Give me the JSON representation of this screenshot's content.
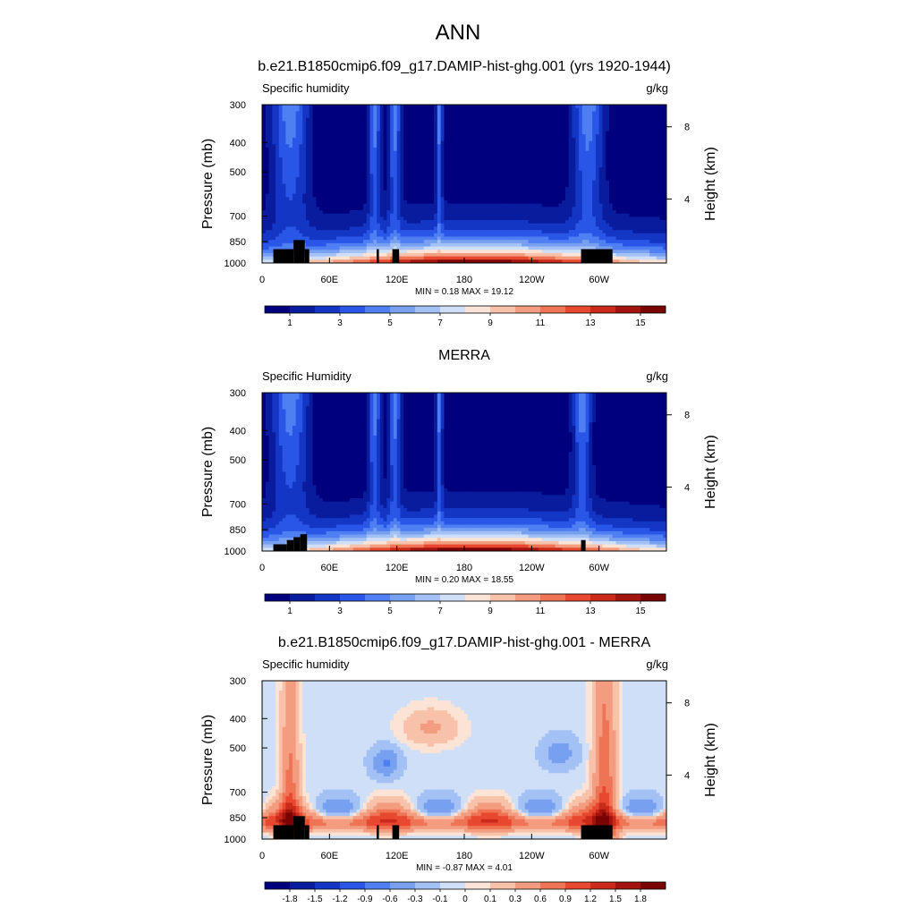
{
  "figure": {
    "title": "ANN"
  },
  "colors": {
    "abs_scale": [
      "#00007f",
      "#0a1c9e",
      "#1436c4",
      "#2a56e8",
      "#4f7ff2",
      "#78a0f0",
      "#a3c1f4",
      "#cfdff7",
      "#fbe4d5",
      "#f7c2a9",
      "#f39c80",
      "#ee7455",
      "#e8482f",
      "#c92a1a",
      "#a3140e",
      "#7a0403"
    ],
    "diff_scale": [
      "#00007f",
      "#0a1c9e",
      "#1436c4",
      "#2a56e8",
      "#4f7ff2",
      "#78a0f0",
      "#a3c1f4",
      "#cfdff7",
      "#fbe4d5",
      "#f7c2a9",
      "#f39c80",
      "#ee7455",
      "#e8482f",
      "#c92a1a",
      "#a3140e",
      "#7a0403"
    ],
    "topo": "#000000"
  },
  "chart_data": [
    {
      "type": "heatmap",
      "title": "b.e21.B1850cmip6.f09_g17.DAMIP-hist-ghg.001 (yrs 1920-1944)",
      "left_label": "Specific humidity",
      "right_label": "g/kg",
      "ylabel": "Pressure (mb)",
      "ylabel_right": "Height (km)",
      "x_ticks": [
        "0",
        "60E",
        "120E",
        "180",
        "120W",
        "60W"
      ],
      "x_tick_values": [
        0,
        60,
        120,
        180,
        240,
        300
      ],
      "xlim": [
        0,
        360
      ],
      "y_ticks": [
        "300",
        "400",
        "500",
        "700",
        "850",
        "1000"
      ],
      "y_tick_values": [
        300,
        400,
        500,
        700,
        850,
        1000
      ],
      "ylim": [
        1000,
        300
      ],
      "y_scale": "log",
      "height_ticks": [
        "8",
        "4"
      ],
      "height_tick_values": [
        8,
        4
      ],
      "stats": "MIN =   0.18  MAX =  19.12",
      "colorbar_labels": [
        "1",
        "3",
        "5",
        "7",
        "9",
        "11",
        "13",
        "15"
      ],
      "levels": [
        0,
        1,
        2,
        3,
        4,
        5,
        6,
        7,
        8,
        9,
        10,
        11,
        12,
        13,
        14,
        15
      ],
      "ridges": [
        [
          25,
          12
        ],
        [
          100,
          4
        ],
        [
          118,
          4
        ],
        [
          158,
          2
        ],
        [
          290,
          10
        ]
      ],
      "topography": [
        [
          10,
          28,
          900,
          1000
        ],
        [
          28,
          38,
          840,
          1000
        ],
        [
          38,
          42,
          900,
          1000
        ],
        [
          102,
          104,
          900,
          1000
        ],
        [
          116,
          122,
          900,
          1000
        ],
        [
          284,
          312,
          900,
          1000
        ]
      ]
    },
    {
      "type": "heatmap",
      "title": "MERRA",
      "left_label": "Specific Humidity",
      "right_label": "g/kg",
      "ylabel": "Pressure (mb)",
      "ylabel_right": "Height (km)",
      "x_ticks": [
        "0",
        "60E",
        "120E",
        "180",
        "120W",
        "60W"
      ],
      "x_tick_values": [
        0,
        60,
        120,
        180,
        240,
        300
      ],
      "xlim": [
        0,
        360
      ],
      "y_ticks": [
        "300",
        "400",
        "500",
        "700",
        "850",
        "1000"
      ],
      "y_tick_values": [
        300,
        400,
        500,
        700,
        850,
        1000
      ],
      "ylim": [
        1000,
        300
      ],
      "y_scale": "log",
      "height_ticks": [
        "8",
        "4"
      ],
      "height_tick_values": [
        8,
        4
      ],
      "stats": "MIN =   0.20  MAX =  18.55",
      "colorbar_labels": [
        "1",
        "3",
        "5",
        "7",
        "9",
        "11",
        "13",
        "15"
      ],
      "levels": [
        0,
        1,
        2,
        3,
        4,
        5,
        6,
        7,
        8,
        9,
        10,
        11,
        12,
        13,
        14,
        15
      ],
      "ridges": [
        [
          25,
          12
        ],
        [
          100,
          4
        ],
        [
          118,
          4
        ],
        [
          158,
          2
        ],
        [
          285,
          6
        ]
      ],
      "topography": [
        [
          10,
          22,
          950,
          1000
        ],
        [
          22,
          28,
          920,
          1000
        ],
        [
          28,
          34,
          900,
          1000
        ],
        [
          34,
          40,
          880,
          1000
        ],
        [
          284,
          288,
          920,
          1000
        ]
      ]
    },
    {
      "type": "heatmap",
      "title": "b.e21.B1850cmip6.f09_g17.DAMIP-hist-ghg.001 - MERRA",
      "left_label": "Specific humidity",
      "right_label": "g/kg",
      "ylabel": "Pressure (mb)",
      "ylabel_right": "Height (km)",
      "x_ticks": [
        "0",
        "60E",
        "120E",
        "180",
        "120W",
        "60W"
      ],
      "x_tick_values": [
        0,
        60,
        120,
        180,
        240,
        300
      ],
      "xlim": [
        0,
        360
      ],
      "y_ticks": [
        "300",
        "400",
        "500",
        "700",
        "850",
        "1000"
      ],
      "y_tick_values": [
        300,
        400,
        500,
        700,
        850,
        1000
      ],
      "ylim": [
        1000,
        300
      ],
      "y_scale": "log",
      "height_ticks": [
        "8",
        "4"
      ],
      "height_tick_values": [
        8,
        4
      ],
      "stats": "MIN =  -0.87  MAX =   4.01",
      "colorbar_labels": [
        "-1.8",
        "-1.5",
        "-1.2",
        "-0.9",
        "-0.6",
        "-0.3",
        "-0.1",
        "0",
        "0.1",
        "0.3",
        "0.6",
        "0.9",
        "1.2",
        "1.5",
        "1.8"
      ],
      "levels": [
        -1.8,
        -1.5,
        -1.2,
        -0.9,
        -0.6,
        -0.3,
        -0.1,
        0,
        0.1,
        0.3,
        0.6,
        0.9,
        1.2,
        1.5,
        1.8
      ],
      "topography": [
        [
          10,
          28,
          900,
          1000
        ],
        [
          28,
          38,
          840,
          1000
        ],
        [
          38,
          42,
          900,
          1000
        ],
        [
          102,
          104,
          900,
          1000
        ],
        [
          116,
          122,
          900,
          1000
        ],
        [
          284,
          312,
          900,
          1000
        ]
      ]
    }
  ]
}
